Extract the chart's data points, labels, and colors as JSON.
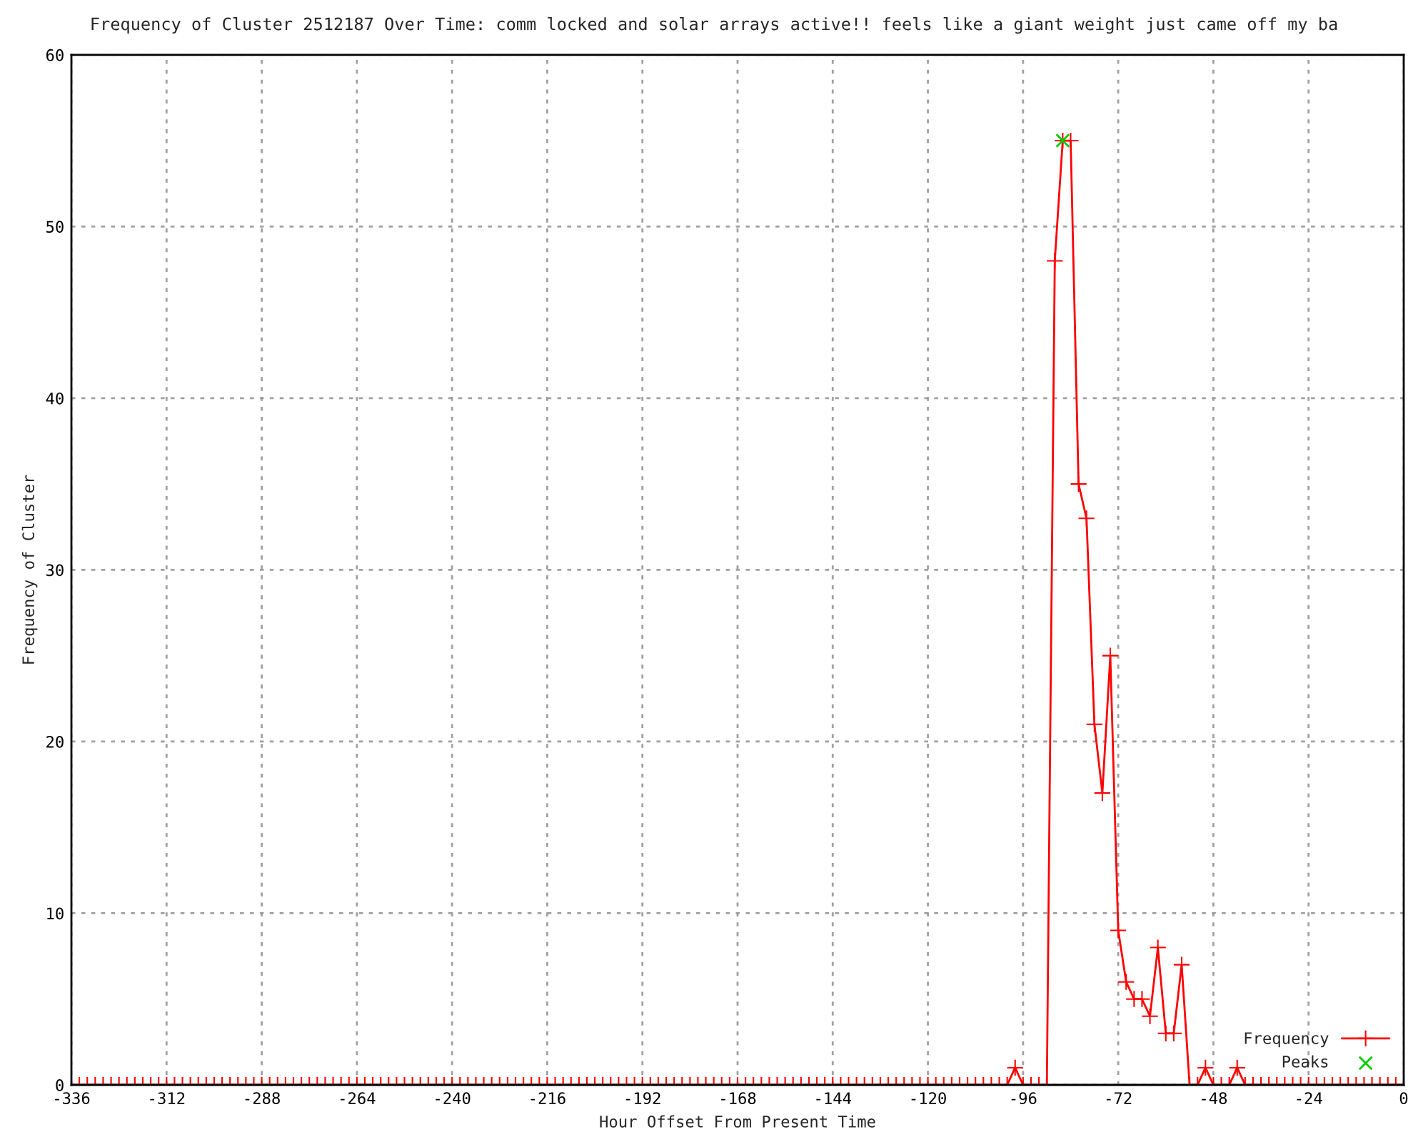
{
  "chart_data": {
    "type": "line",
    "title": "Frequency of Cluster 2512187 Over Time: comm locked and solar arrays active!! feels like a giant weight just came off my ba",
    "xlabel": "Hour Offset From Present Time",
    "ylabel": "Frequency of Cluster",
    "xlim": [
      -336,
      0
    ],
    "xticks": [
      -336,
      -312,
      -288,
      -264,
      -240,
      -216,
      -192,
      -168,
      -144,
      -120,
      -96,
      -72,
      -48,
      -24,
      0
    ],
    "ylim": [
      0,
      60
    ],
    "yticks": [
      0,
      10,
      20,
      30,
      40,
      50,
      60
    ],
    "grid": true,
    "legend": "bottom right",
    "series": [
      {
        "name": "Frequency",
        "color": "#ff0000",
        "marker": "cross",
        "line_style": "solid",
        "x": [
          -336,
          -334,
          -332,
          -330,
          -328,
          -326,
          -324,
          -322,
          -320,
          -318,
          -316,
          -314,
          -312,
          -310,
          -308,
          -306,
          -304,
          -302,
          -300,
          -298,
          -296,
          -294,
          -292,
          -290,
          -288,
          -286,
          -284,
          -282,
          -280,
          -278,
          -276,
          -274,
          -272,
          -270,
          -268,
          -266,
          -264,
          -262,
          -260,
          -258,
          -256,
          -254,
          -252,
          -250,
          -248,
          -246,
          -244,
          -242,
          -240,
          -238,
          -236,
          -234,
          -232,
          -230,
          -228,
          -226,
          -224,
          -222,
          -220,
          -218,
          -216,
          -214,
          -212,
          -210,
          -208,
          -206,
          -204,
          -202,
          -200,
          -198,
          -196,
          -194,
          -192,
          -190,
          -188,
          -186,
          -184,
          -182,
          -180,
          -178,
          -176,
          -174,
          -172,
          -170,
          -168,
          -166,
          -164,
          -162,
          -160,
          -158,
          -156,
          -154,
          -152,
          -150,
          -148,
          -146,
          -144,
          -142,
          -140,
          -138,
          -136,
          -134,
          -132,
          -130,
          -128,
          -126,
          -124,
          -122,
          -120,
          -118,
          -116,
          -114,
          -112,
          -110,
          -108,
          -106,
          -104,
          -102,
          -100,
          -98,
          -96,
          -94,
          -92,
          -90,
          -88,
          -86,
          -84,
          -82,
          -80,
          -78,
          -76,
          -74,
          -72,
          -70,
          -68,
          -66,
          -64,
          -62,
          -60,
          -58,
          -56,
          -54,
          -52,
          -50,
          -48,
          -46,
          -44,
          -42,
          -40,
          -38,
          -36,
          -34,
          -32,
          -30,
          -28,
          -26,
          -24,
          -22,
          -20,
          -18,
          -16,
          -14,
          -12,
          -10,
          -8,
          -6,
          -4,
          -2,
          0
        ],
        "values": [
          0,
          0,
          0,
          0,
          0,
          0,
          0,
          0,
          0,
          0,
          0,
          0,
          0,
          0,
          0,
          0,
          0,
          0,
          0,
          0,
          0,
          0,
          0,
          0,
          0,
          0,
          0,
          0,
          0,
          0,
          0,
          0,
          0,
          0,
          0,
          0,
          0,
          0,
          0,
          0,
          0,
          0,
          0,
          0,
          0,
          0,
          0,
          0,
          0,
          0,
          0,
          0,
          0,
          0,
          0,
          0,
          0,
          0,
          0,
          0,
          0,
          0,
          0,
          0,
          0,
          0,
          0,
          0,
          0,
          0,
          0,
          0,
          0,
          0,
          0,
          0,
          0,
          0,
          0,
          0,
          0,
          0,
          0,
          0,
          0,
          0,
          0,
          0,
          0,
          0,
          0,
          0,
          0,
          0,
          0,
          0,
          0,
          0,
          0,
          0,
          0,
          0,
          0,
          0,
          0,
          0,
          0,
          0,
          0,
          0,
          0,
          0,
          0,
          0,
          0,
          0,
          0,
          0,
          0,
          1,
          0,
          0,
          0,
          0,
          48,
          55,
          55,
          35,
          33,
          21,
          17,
          25,
          9,
          6,
          5,
          5,
          4,
          8,
          3,
          3,
          7,
          0,
          0,
          1,
          0,
          0,
          0,
          1,
          0,
          0,
          0,
          0,
          0,
          0,
          0,
          0,
          0,
          0,
          0,
          0,
          0,
          0,
          0,
          0,
          0,
          0,
          0,
          0,
          0
        ]
      },
      {
        "name": "Peaks",
        "type": "scatter",
        "color": "#00cc00",
        "marker": "cross",
        "x": [
          -86
        ],
        "values": [
          55
        ]
      }
    ]
  }
}
